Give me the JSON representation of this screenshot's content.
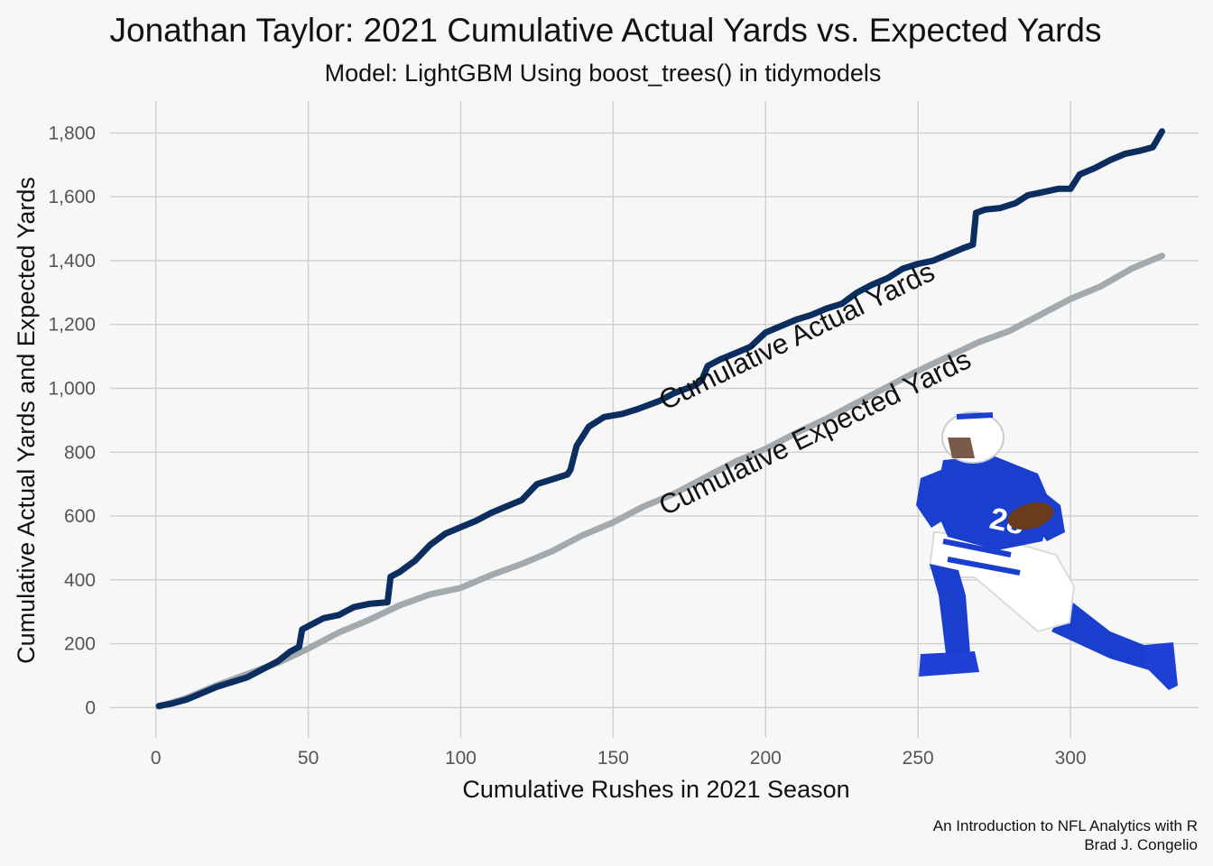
{
  "chart_data": {
    "type": "line",
    "title": "Jonathan Taylor: 2021 Cumulative Actual Yards vs. Expected Yards",
    "subtitle": "Model: LightGBM Using boost_trees() in tidymodels",
    "xlabel": "Cumulative Rushes in 2021 Season",
    "ylabel": "Cumulative Actual Yards and Expected Yards",
    "xlim": [
      -15,
      342
    ],
    "ylim": [
      -95,
      1900
    ],
    "x_ticks": [
      0,
      50,
      100,
      150,
      200,
      250,
      300
    ],
    "x_tick_labels": [
      "0",
      "50",
      "100",
      "150",
      "200",
      "250",
      "300"
    ],
    "y_ticks": [
      0,
      200,
      400,
      600,
      800,
      1000,
      1200,
      1400,
      1600,
      1800
    ],
    "y_tick_labels": [
      "0",
      "200",
      "400",
      "600",
      "800",
      "1,000",
      "1,200",
      "1,400",
      "1,600",
      "1,800"
    ],
    "grid": true,
    "legend": "none",
    "annotations": [
      {
        "text": "Cumulative Actual Yards",
        "x": 167,
        "y": 930,
        "angle": -26
      },
      {
        "text": "Cumulative Expected Yards",
        "x": 167,
        "y": 600,
        "angle": -26
      }
    ],
    "series": [
      {
        "name": "Cumulative Actual Yards",
        "color": "#0b2e5e",
        "points": [
          [
            1,
            5
          ],
          [
            5,
            12
          ],
          [
            10,
            25
          ],
          [
            15,
            45
          ],
          [
            20,
            65
          ],
          [
            25,
            80
          ],
          [
            30,
            95
          ],
          [
            35,
            120
          ],
          [
            40,
            145
          ],
          [
            44,
            175
          ],
          [
            47,
            190
          ],
          [
            48,
            245
          ],
          [
            52,
            265
          ],
          [
            55,
            280
          ],
          [
            60,
            290
          ],
          [
            62,
            300
          ],
          [
            65,
            315
          ],
          [
            70,
            325
          ],
          [
            76,
            330
          ],
          [
            77,
            410
          ],
          [
            80,
            425
          ],
          [
            85,
            460
          ],
          [
            90,
            510
          ],
          [
            95,
            545
          ],
          [
            100,
            565
          ],
          [
            105,
            585
          ],
          [
            110,
            610
          ],
          [
            115,
            630
          ],
          [
            120,
            650
          ],
          [
            125,
            700
          ],
          [
            130,
            715
          ],
          [
            135,
            730
          ],
          [
            136,
            745
          ],
          [
            138,
            820
          ],
          [
            142,
            880
          ],
          [
            147,
            910
          ],
          [
            153,
            920
          ],
          [
            158,
            935
          ],
          [
            165,
            960
          ],
          [
            170,
            985
          ],
          [
            177,
            1010
          ],
          [
            179,
            1025
          ],
          [
            181,
            1070
          ],
          [
            185,
            1090
          ],
          [
            190,
            1110
          ],
          [
            195,
            1130
          ],
          [
            200,
            1175
          ],
          [
            205,
            1195
          ],
          [
            210,
            1215
          ],
          [
            215,
            1230
          ],
          [
            220,
            1250
          ],
          [
            225,
            1265
          ],
          [
            230,
            1300
          ],
          [
            235,
            1325
          ],
          [
            240,
            1345
          ],
          [
            245,
            1375
          ],
          [
            250,
            1390
          ],
          [
            255,
            1400
          ],
          [
            260,
            1420
          ],
          [
            265,
            1440
          ],
          [
            268,
            1450
          ],
          [
            269,
            1550
          ],
          [
            272,
            1560
          ],
          [
            277,
            1565
          ],
          [
            282,
            1580
          ],
          [
            286,
            1605
          ],
          [
            291,
            1615
          ],
          [
            296,
            1625
          ],
          [
            300,
            1625
          ],
          [
            303,
            1670
          ],
          [
            308,
            1690
          ],
          [
            313,
            1715
          ],
          [
            318,
            1735
          ],
          [
            323,
            1745
          ],
          [
            327,
            1755
          ],
          [
            330,
            1805
          ]
        ]
      },
      {
        "name": "Cumulative Expected Yards",
        "color": "#a3aaae",
        "points": [
          [
            1,
            3
          ],
          [
            10,
            30
          ],
          [
            20,
            70
          ],
          [
            30,
            105
          ],
          [
            40,
            140
          ],
          [
            50,
            185
          ],
          [
            60,
            235
          ],
          [
            70,
            275
          ],
          [
            80,
            320
          ],
          [
            90,
            355
          ],
          [
            100,
            375
          ],
          [
            110,
            415
          ],
          [
            120,
            450
          ],
          [
            130,
            490
          ],
          [
            140,
            540
          ],
          [
            150,
            580
          ],
          [
            160,
            630
          ],
          [
            170,
            670
          ],
          [
            180,
            720
          ],
          [
            190,
            770
          ],
          [
            200,
            810
          ],
          [
            210,
            860
          ],
          [
            220,
            905
          ],
          [
            230,
            955
          ],
          [
            240,
            1005
          ],
          [
            250,
            1055
          ],
          [
            260,
            1100
          ],
          [
            270,
            1145
          ],
          [
            280,
            1180
          ],
          [
            290,
            1230
          ],
          [
            300,
            1280
          ],
          [
            310,
            1320
          ],
          [
            320,
            1375
          ],
          [
            330,
            1415
          ]
        ]
      }
    ],
    "caption": [
      "An Introduction to NFL Analytics with R",
      "Brad J. Congelio"
    ]
  },
  "player_image": {
    "description_icon": "football-player-running-icon",
    "jersey_number": "28",
    "colors": {
      "jersey": "#1a3fcf",
      "pants": "#ffffff",
      "helmet": "#ffffff",
      "cleats": "#1f3fd6",
      "ball": "#6b3b1e"
    }
  }
}
